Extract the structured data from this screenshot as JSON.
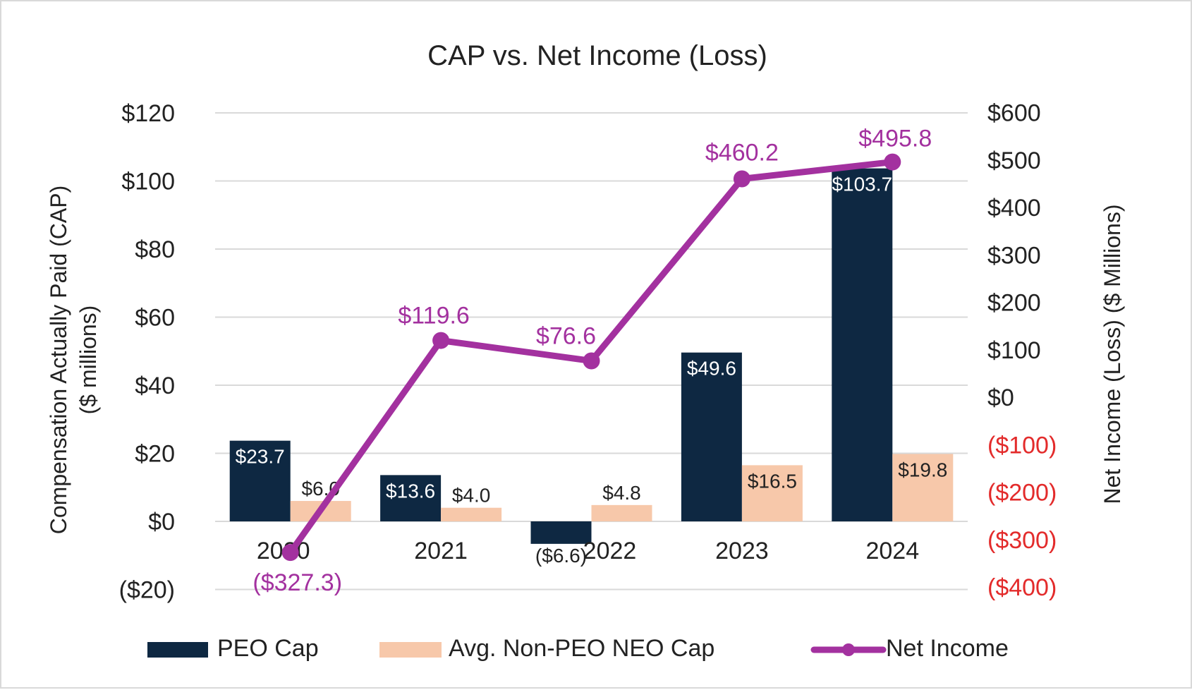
{
  "chart_data": {
    "type": "bar",
    "title": "CAP vs. Net Income (Loss)",
    "categories": [
      "2020",
      "2021",
      "2022",
      "2023",
      "2024"
    ],
    "series": [
      {
        "name": "PEO Cap",
        "kind": "bar",
        "axis": "left",
        "color": "#0e2842",
        "values": [
          23.7,
          13.6,
          -6.6,
          49.6,
          103.7
        ],
        "labels": [
          "$23.7",
          "$13.6",
          "($6.6)",
          "$49.6",
          "$103.7"
        ]
      },
      {
        "name": "Avg. Non-PEO NEO Cap",
        "kind": "bar",
        "axis": "left",
        "color": "#f7c8aa",
        "values": [
          6.0,
          4.0,
          4.8,
          16.5,
          19.8
        ],
        "labels": [
          "$6.0",
          "$4.0",
          "$4.8",
          "$16.5",
          "$19.8"
        ]
      },
      {
        "name": "Net Income",
        "kind": "line",
        "axis": "right",
        "color": "#a3319f",
        "values": [
          -327.3,
          119.6,
          76.6,
          460.2,
          495.8
        ],
        "labels": [
          "($327.3)",
          "$119.6",
          "$76.6",
          "$460.2",
          "$495.8"
        ]
      }
    ],
    "y_left": {
      "label_line1": "Compensation Actually Paid (CAP)",
      "label_line2": "($ millions)",
      "range": [
        -20,
        120
      ],
      "ticks": [
        120,
        100,
        80,
        60,
        40,
        20,
        0,
        -20
      ],
      "tick_labels": [
        "$120",
        "$100",
        "$80",
        "$60",
        "$40",
        "$20",
        "$0",
        "($20)"
      ]
    },
    "y_right": {
      "label": "Net Income (Loss) ($ Millions)",
      "range": [
        -400,
        600
      ],
      "ticks": [
        600,
        500,
        400,
        300,
        200,
        100,
        0,
        -100,
        -200,
        -300,
        -400
      ],
      "tick_labels": [
        "$600",
        "$500",
        "$400",
        "$300",
        "$200",
        "$100",
        "$0",
        "($100)",
        "($200)",
        "($300)",
        "($400)"
      ],
      "negative_color": "#e32b2b"
    },
    "gridlines": true,
    "legend_position": "bottom"
  }
}
